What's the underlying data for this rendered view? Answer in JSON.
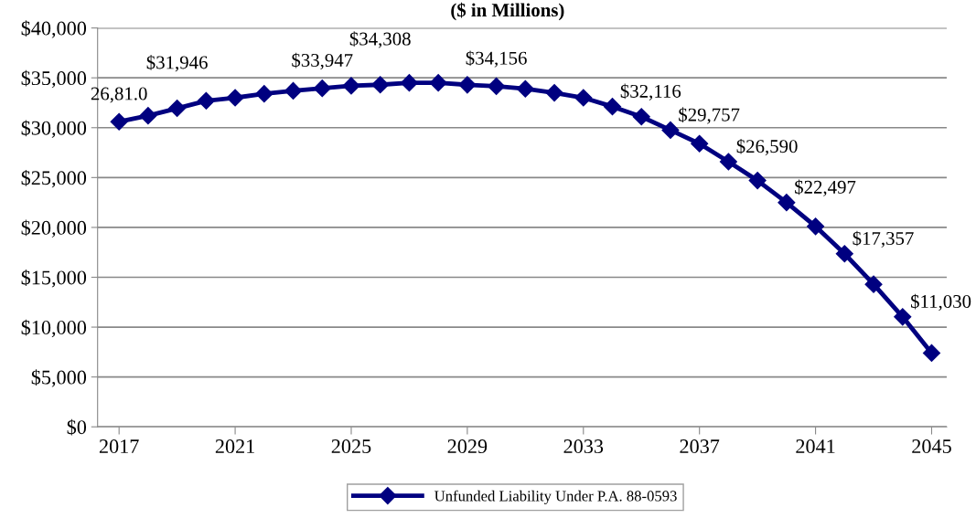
{
  "chart_data": {
    "type": "line",
    "title": "($ in Millions)",
    "categories": [
      "2017",
      null,
      null,
      null,
      "2021",
      null,
      null,
      null,
      "2025",
      null,
      null,
      null,
      "2029",
      null,
      null,
      null,
      "2033",
      null,
      null,
      null,
      "2037",
      null,
      null,
      null,
      "2041",
      null,
      null,
      null,
      "2045"
    ],
    "series": [
      {
        "name": "Unfunded Liability Under P.A. 88-0593",
        "color": "#000080",
        "values": [
          30600,
          31200,
          31946,
          32700,
          33000,
          33400,
          33700,
          33947,
          34200,
          34308,
          34500,
          34500,
          34300,
          34156,
          33900,
          33500,
          33000,
          32116,
          31100,
          29757,
          28400,
          26590,
          24700,
          22497,
          20100,
          17357,
          14300,
          11030,
          7400
        ],
        "value_labels": [
          "26,81.0",
          null,
          "$31,946",
          null,
          null,
          null,
          null,
          "$33,947",
          null,
          "$34,308",
          null,
          null,
          null,
          "$34,156",
          null,
          null,
          null,
          "$32,116",
          null,
          "$29,757",
          null,
          "$26,590",
          null,
          "$22,497",
          null,
          "$17,357",
          null,
          "$11,030",
          null
        ]
      }
    ],
    "ylim": [
      0,
      40000
    ],
    "yticks": [
      {
        "value": 0,
        "label": "$0"
      },
      {
        "value": 5000,
        "label": "$5,000"
      },
      {
        "value": 10000,
        "label": "$10,000"
      },
      {
        "value": 15000,
        "label": "$15,000"
      },
      {
        "value": 20000,
        "label": "$20,000"
      },
      {
        "value": 25000,
        "label": "$25,000"
      },
      {
        "value": 30000,
        "label": "$30,000"
      },
      {
        "value": 35000,
        "label": "$35,000"
      },
      {
        "value": 40000,
        "label": "$40,000"
      }
    ],
    "grid": "y",
    "legend": "bottom",
    "marker": "diamond",
    "line_style": "solid"
  }
}
